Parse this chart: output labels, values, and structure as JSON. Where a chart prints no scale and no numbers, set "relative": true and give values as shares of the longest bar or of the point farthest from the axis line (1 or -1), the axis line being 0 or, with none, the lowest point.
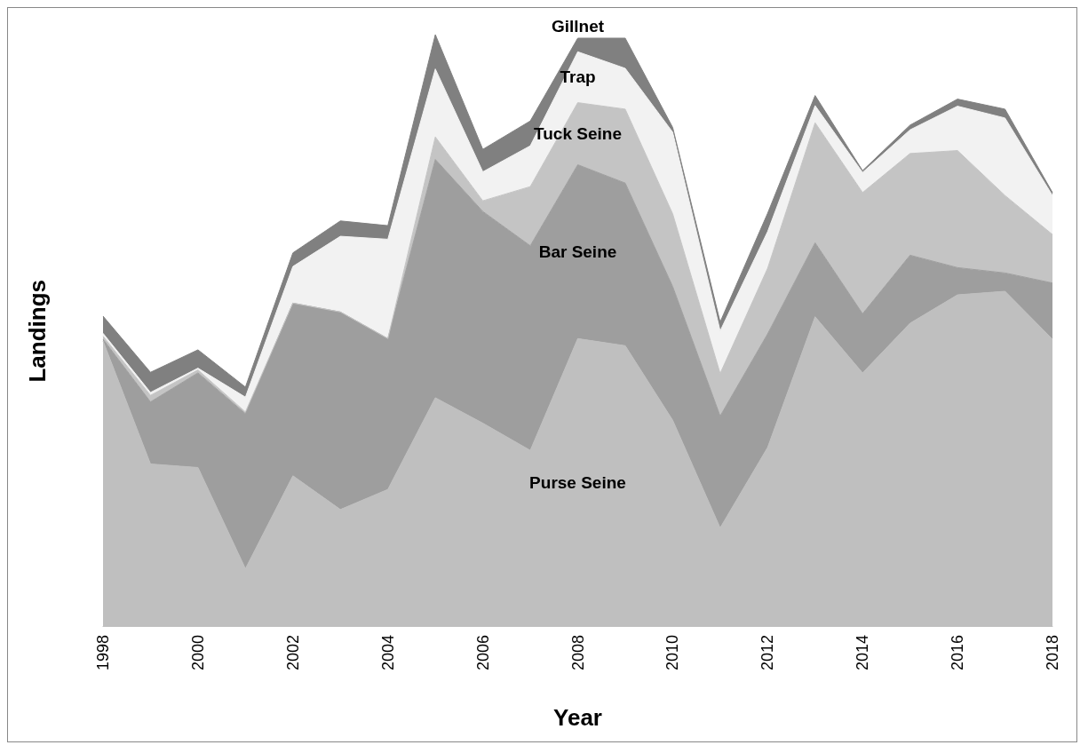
{
  "chart_data": {
    "type": "area",
    "stacked": true,
    "relative": true,
    "xlabel": "Year",
    "ylabel": "Landings",
    "legend": false,
    "grid": false,
    "categories": [
      "1998",
      null,
      "2000",
      null,
      "2002",
      null,
      "2004",
      null,
      "2006",
      null,
      "2008",
      null,
      "2010",
      null,
      "2012",
      null,
      "2014",
      null,
      "2016",
      null,
      "2018"
    ],
    "series": [
      {
        "name": "Purse Seine",
        "color": "#bfbfbf",
        "values": [
          0.482,
          0.274,
          0.268,
          0.097,
          0.254,
          0.197,
          0.231,
          0.386,
          0.343,
          0.297,
          0.486,
          0.474,
          0.348,
          0.166,
          0.302,
          0.523,
          0.428,
          0.512,
          0.56,
          0.566,
          0.485
        ]
      },
      {
        "name": "Bar Seine",
        "color": "#9e9e9e",
        "values": [
          0.003,
          0.105,
          0.16,
          0.262,
          0.292,
          0.334,
          0.255,
          0.403,
          0.358,
          0.346,
          0.294,
          0.275,
          0.226,
          0.189,
          0.192,
          0.125,
          0.1,
          0.115,
          0.046,
          0.031,
          0.095
        ]
      },
      {
        "name": "Tuck Seine",
        "color": "#c4c4c4",
        "values": [
          0.005,
          0.011,
          0.005,
          0.003,
          0,
          0,
          0,
          0.038,
          0.018,
          0.1,
          0.105,
          0.125,
          0.123,
          0.072,
          0.111,
          0.203,
          0.205,
          0.172,
          0.198,
          0.131,
          0.082
        ]
      },
      {
        "name": "Trap",
        "color": "#f2f2f2",
        "values": [
          0.005,
          0.005,
          0.003,
          0.025,
          0.062,
          0.128,
          0.168,
          0.115,
          0.049,
          0.069,
          0.086,
          0.069,
          0.138,
          0.072,
          0.062,
          0.029,
          0.034,
          0.04,
          0.075,
          0.131,
          0.066
        ]
      },
      {
        "name": "Gillnet",
        "color": "#808080",
        "values": [
          0.029,
          0.034,
          0.031,
          0.017,
          0.023,
          0.026,
          0.023,
          0.058,
          0.038,
          0.042,
          0.023,
          0.051,
          0.008,
          0.015,
          0.031,
          0.017,
          0.003,
          0.008,
          0.012,
          0.015,
          0.005
        ]
      }
    ]
  }
}
